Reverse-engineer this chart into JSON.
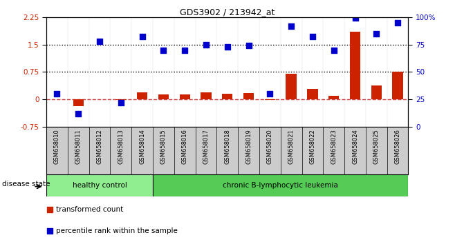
{
  "title": "GDS3902 / 213942_at",
  "samples": [
    "GSM658010",
    "GSM658011",
    "GSM658012",
    "GSM658013",
    "GSM658014",
    "GSM658015",
    "GSM658016",
    "GSM658017",
    "GSM658018",
    "GSM658019",
    "GSM658020",
    "GSM658021",
    "GSM658022",
    "GSM658023",
    "GSM658024",
    "GSM658025",
    "GSM658026"
  ],
  "transformed_count": [
    0.0,
    -0.18,
    0.01,
    -0.02,
    0.2,
    0.13,
    0.14,
    0.2,
    0.15,
    0.17,
    -0.02,
    0.7,
    0.28,
    0.1,
    1.85,
    0.38,
    0.76
  ],
  "percentile_rank": [
    30,
    12,
    78,
    22,
    82,
    70,
    70,
    75,
    73,
    74,
    30,
    92,
    82,
    70,
    99,
    85,
    95
  ],
  "healthy_count": 5,
  "leukemia_count": 12,
  "ylim_left": [
    -0.75,
    2.25
  ],
  "ylim_right": [
    0,
    100
  ],
  "yticks_left": [
    -0.75,
    0.0,
    0.75,
    1.5,
    2.25
  ],
  "yticks_right": [
    0,
    25,
    50,
    75,
    100
  ],
  "hlines": [
    0.75,
    1.5
  ],
  "bar_color": "#cc2200",
  "dot_color": "#0000cc",
  "zero_line_color": "#cc4444",
  "healthy_color": "#90ee90",
  "leukemia_color": "#55cc55",
  "sample_bg_color": "#cccccc",
  "legend_bar_label": "transformed count",
  "legend_dot_label": "percentile rank within the sample",
  "group_label": "disease state",
  "healthy_label": "healthy control",
  "leukemia_label": "chronic B-lymphocytic leukemia"
}
